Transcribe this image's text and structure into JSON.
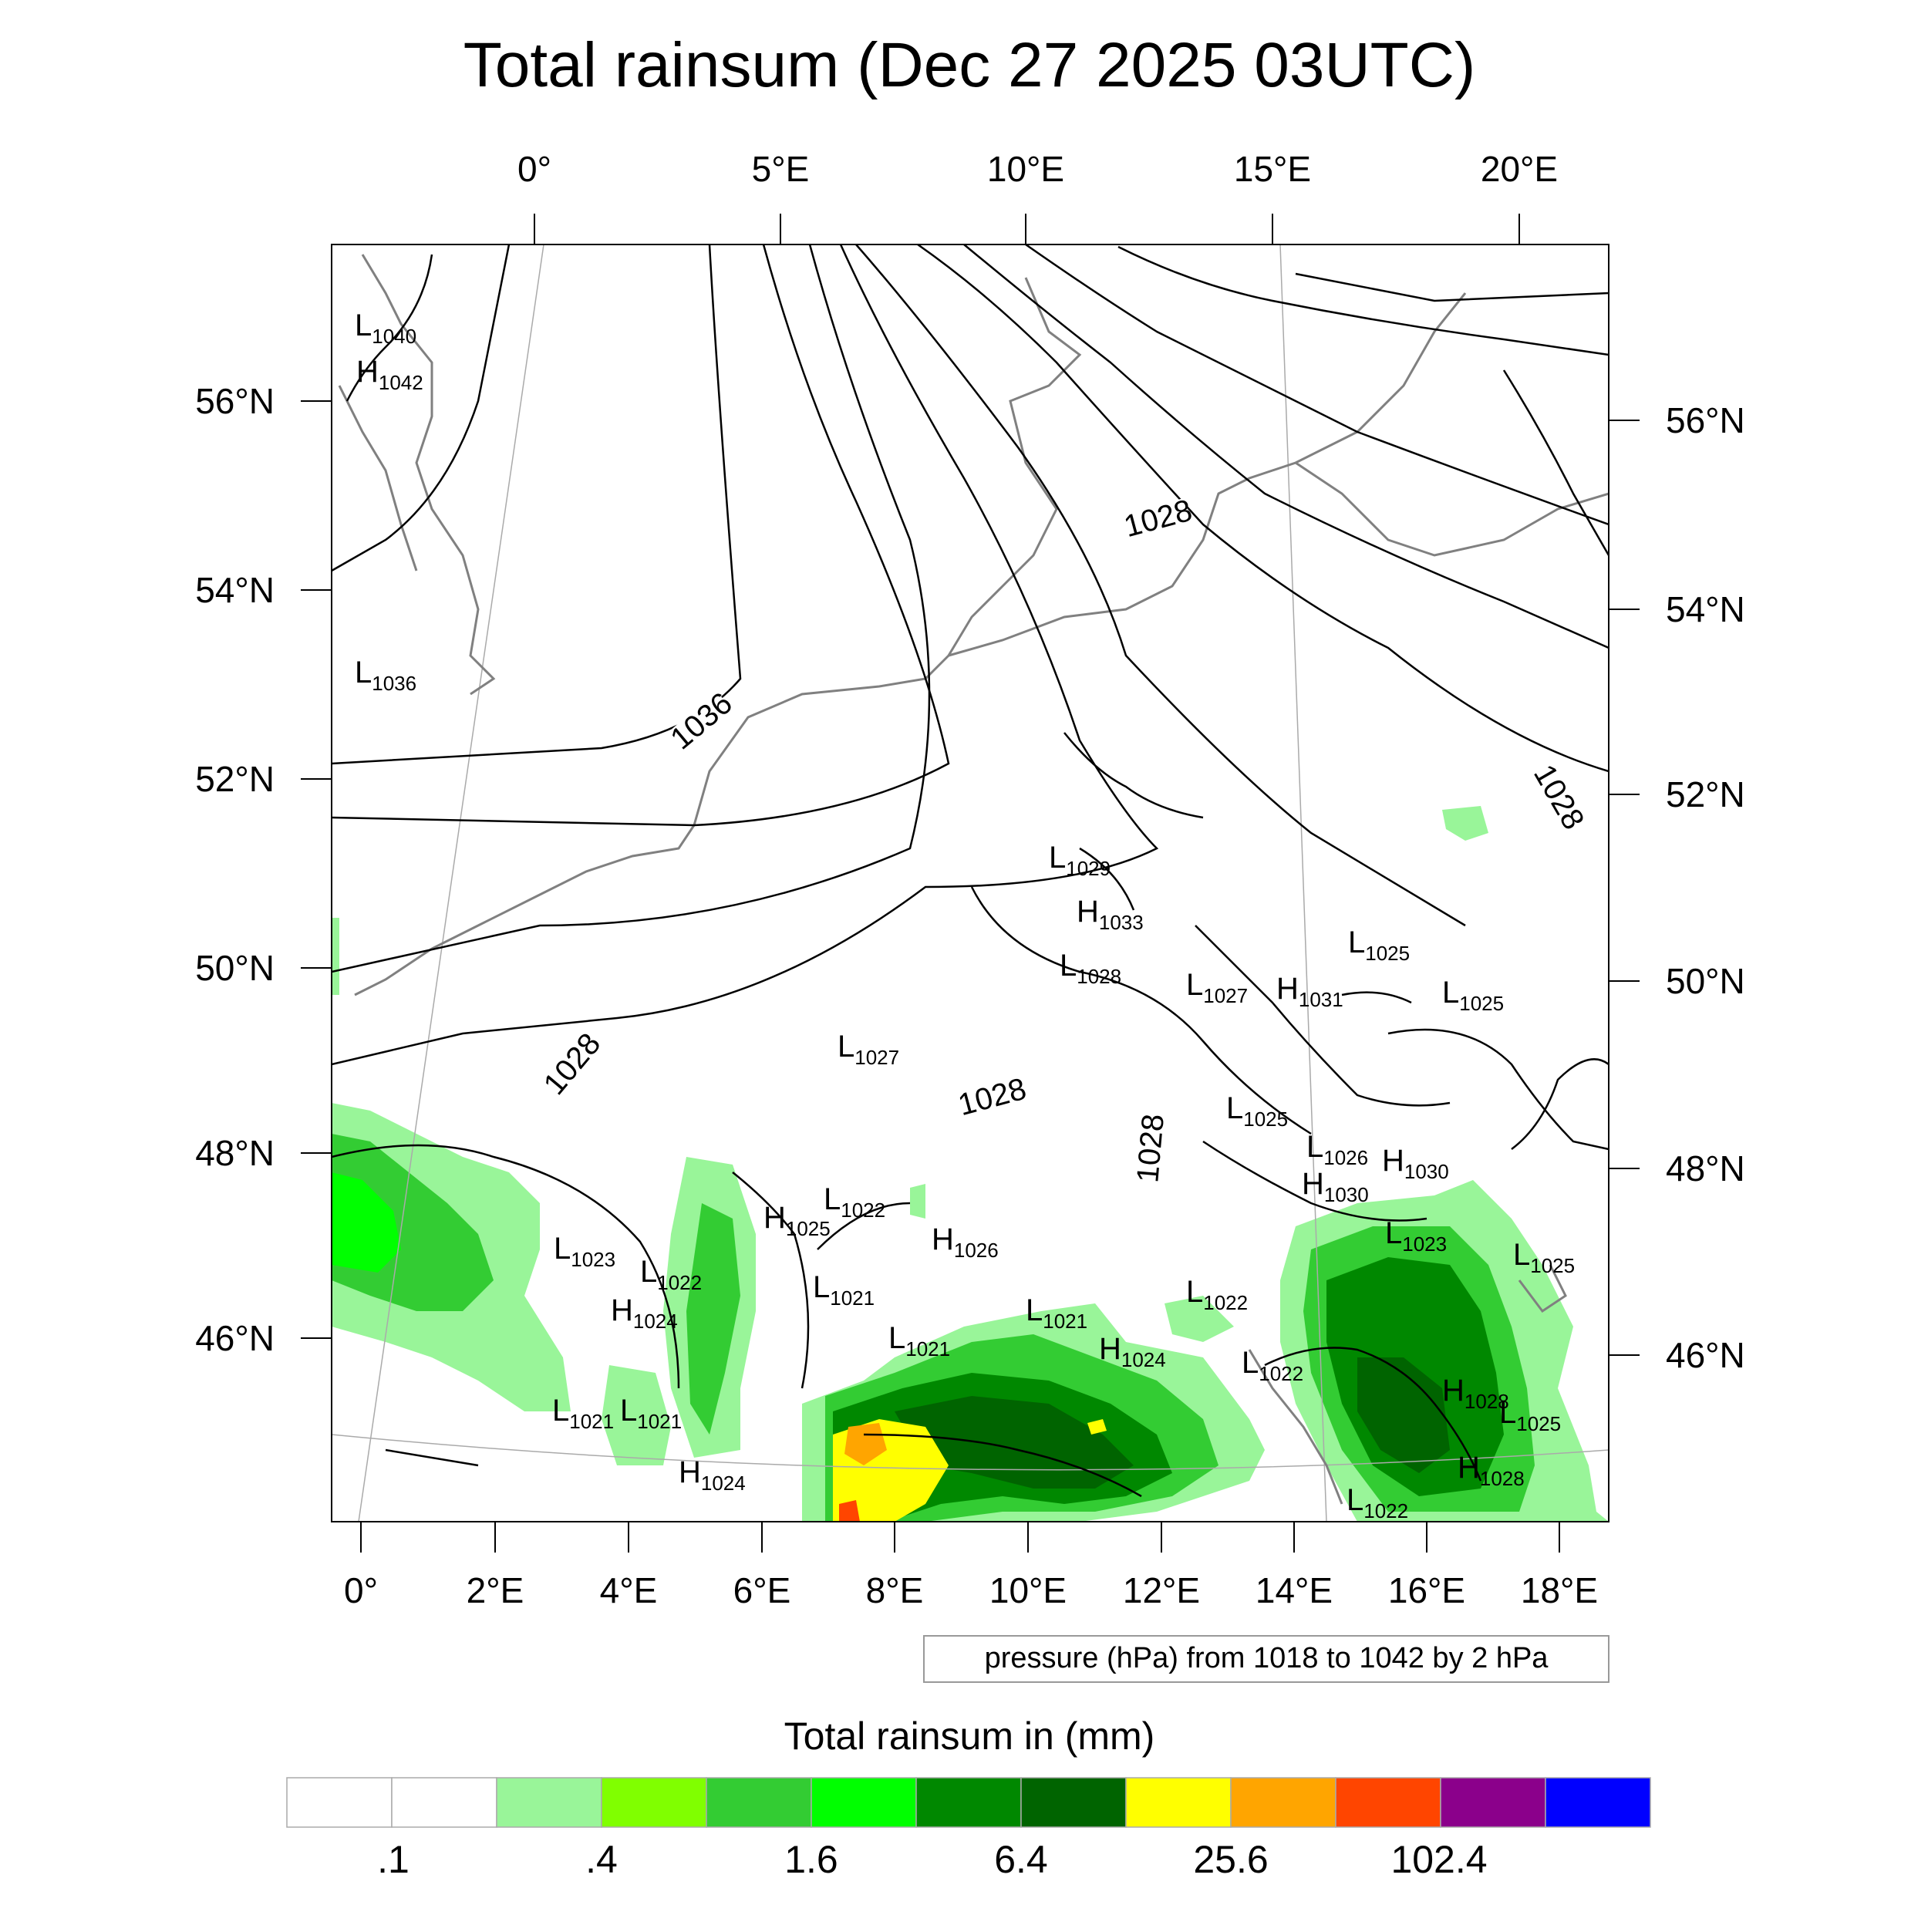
{
  "title": "Total rainsum (Dec 27 2025 03UTC)",
  "top_lon_labels": [
    "0°",
    "5°E",
    "10°E",
    "15°E",
    "20°E"
  ],
  "bottom_lon_labels": [
    "0°",
    "2°E",
    "4°E",
    "6°E",
    "8°E",
    "10°E",
    "12°E",
    "14°E",
    "16°E",
    "18°E"
  ],
  "left_lat_labels": [
    "56°N",
    "54°N",
    "52°N",
    "50°N",
    "48°N",
    "46°N"
  ],
  "right_lat_labels": [
    "56°N",
    "54°N",
    "52°N",
    "50°N",
    "48°N",
    "46°N"
  ],
  "contour_labels": [
    "1036",
    "1028",
    "1028",
    "1028",
    "1028",
    "1028"
  ],
  "pressure_centers": [
    {
      "kind": "L",
      "value": "1040"
    },
    {
      "kind": "H",
      "value": "1042"
    },
    {
      "kind": "L",
      "value": "1036"
    },
    {
      "kind": "L",
      "value": "1029"
    },
    {
      "kind": "H",
      "value": "1033"
    },
    {
      "kind": "L",
      "value": "1028"
    },
    {
      "kind": "L",
      "value": "1025"
    },
    {
      "kind": "L",
      "value": "1027"
    },
    {
      "kind": "H",
      "value": "1031"
    },
    {
      "kind": "L",
      "value": "1025"
    },
    {
      "kind": "L",
      "value": "1027"
    },
    {
      "kind": "L",
      "value": "1025"
    },
    {
      "kind": "L",
      "value": "1026"
    },
    {
      "kind": "H",
      "value": "1030"
    },
    {
      "kind": "H",
      "value": "1030"
    },
    {
      "kind": "L",
      "value": "1022"
    },
    {
      "kind": "H",
      "value": "1025"
    },
    {
      "kind": "H",
      "value": "1026"
    },
    {
      "kind": "L",
      "value": "1023"
    },
    {
      "kind": "L",
      "value": "1022"
    },
    {
      "kind": "H",
      "value": "1024"
    },
    {
      "kind": "L",
      "value": "1021"
    },
    {
      "kind": "L",
      "value": "1021"
    },
    {
      "kind": "L",
      "value": "1021"
    },
    {
      "kind": "H",
      "value": "1024"
    },
    {
      "kind": "L",
      "value": "1022"
    },
    {
      "kind": "L",
      "value": "1022"
    },
    {
      "kind": "L",
      "value": "1023"
    },
    {
      "kind": "L",
      "value": "1025"
    },
    {
      "kind": "H",
      "value": "1028"
    },
    {
      "kind": "H",
      "value": "1028"
    },
    {
      "kind": "L",
      "value": "1021"
    },
    {
      "kind": "L",
      "value": "1021"
    },
    {
      "kind": "H",
      "value": "1024"
    },
    {
      "kind": "L",
      "value": "1022"
    },
    {
      "kind": "L",
      "value": "1025"
    }
  ],
  "contour_info": "pressure (hPa) from 1018 to 1042 by 2 hPa",
  "colorbar": {
    "title": "Total rainsum in (mm)",
    "colors": [
      "#ffffff",
      "#ffffff",
      "#99f599",
      "#80ff00",
      "#33cc33",
      "#00ff00",
      "#008800",
      "#006400",
      "#ffff00",
      "#ffa500",
      "#ff4500",
      "#8b008b",
      "#0000ff"
    ],
    "tick_labels": [
      ".1",
      ".4",
      "1.6",
      "6.4",
      "25.6",
      "102.4"
    ]
  }
}
